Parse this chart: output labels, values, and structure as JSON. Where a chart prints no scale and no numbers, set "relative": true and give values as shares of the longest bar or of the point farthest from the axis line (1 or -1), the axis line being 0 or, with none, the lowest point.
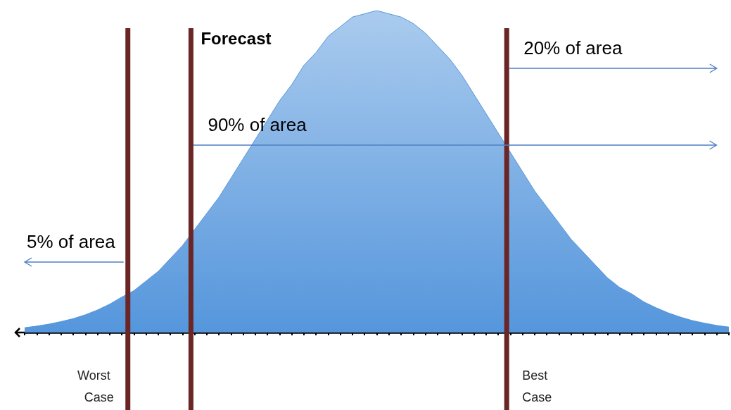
{
  "chart_data": {
    "type": "area",
    "relative": true,
    "color": "#5596dc",
    "categories": [
      null,
      null,
      null,
      null,
      null,
      null,
      null,
      null,
      null,
      null,
      null,
      null,
      null,
      null,
      null,
      null,
      null,
      null,
      null,
      null,
      null,
      null,
      null,
      null,
      null,
      null,
      null,
      null,
      null,
      null,
      null,
      null,
      null,
      null,
      null,
      null,
      null,
      null,
      null,
      null,
      null,
      null,
      null,
      null,
      null,
      null,
      null,
      null,
      null,
      null,
      null,
      null,
      null,
      null,
      null,
      null,
      null,
      null,
      null
    ],
    "values": [
      0.015,
      0.02,
      0.026,
      0.034,
      0.043,
      0.055,
      0.07,
      0.088,
      0.11,
      0.13,
      0.16,
      0.19,
      0.23,
      0.27,
      0.32,
      0.37,
      0.42,
      0.48,
      0.54,
      0.6,
      0.66,
      0.72,
      0.77,
      0.83,
      0.87,
      0.92,
      0.95,
      0.98,
      0.99,
      1,
      0.99,
      0.98,
      0.96,
      0.93,
      0.89,
      0.85,
      0.8,
      0.74,
      0.68,
      0.62,
      0.56,
      0.5,
      0.44,
      0.39,
      0.34,
      0.29,
      0.25,
      0.21,
      0.17,
      0.14,
      0.12,
      0.095,
      0.077,
      0.061,
      0.048,
      0.037,
      0.029,
      0.022,
      0.017
    ],
    "grid": false,
    "ref_lines": [
      {
        "axis": "x",
        "label": "Worst Case",
        "color": "#6b2525"
      },
      {
        "axis": "x",
        "label": "Forecast",
        "color": "#6b2525"
      },
      {
        "axis": "x",
        "label": "Best Case",
        "color": "#6b2525"
      }
    ],
    "annotations": [
      "5% of area",
      "90% of area",
      "20% of area"
    ]
  }
}
